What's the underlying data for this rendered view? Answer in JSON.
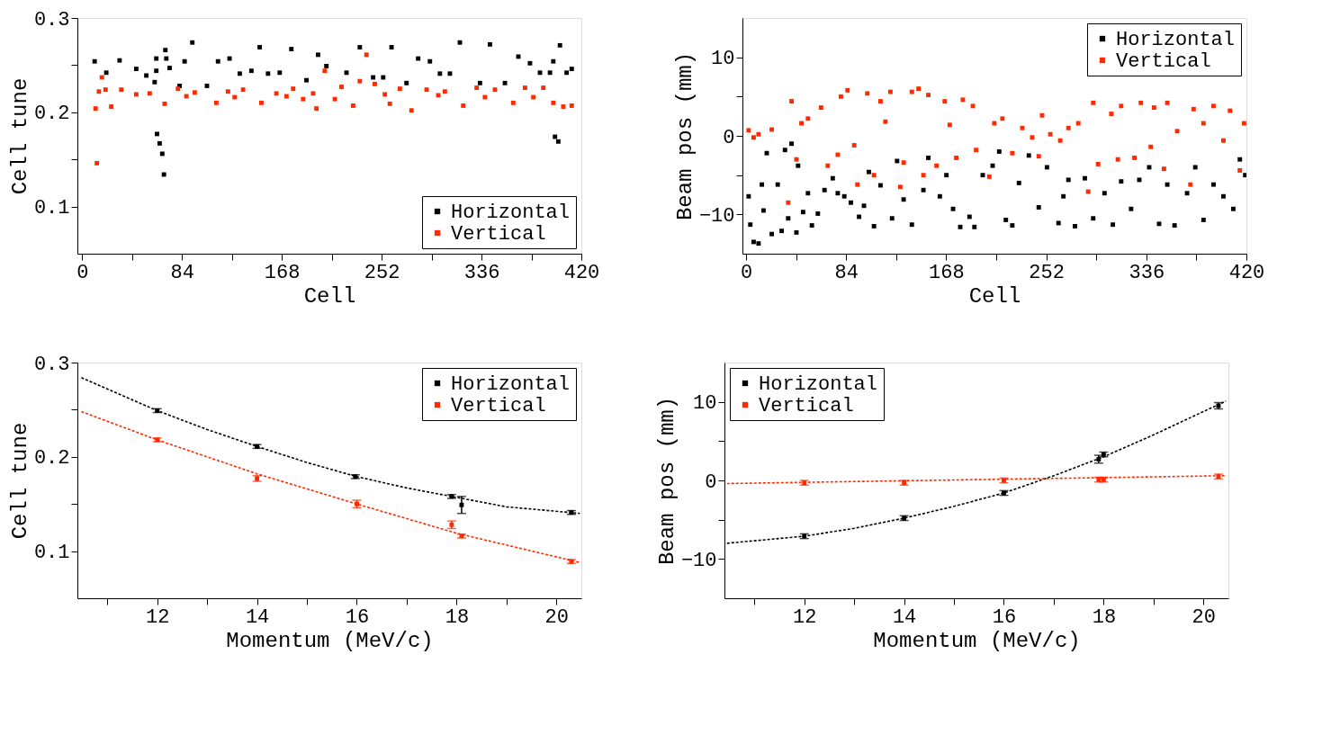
{
  "chart_data": [
    {
      "type": "scatter",
      "xlabel": "Cell",
      "ylabel": "Cell tune",
      "xlim": [
        -4,
        420
      ],
      "ylim": [
        0.05,
        0.3
      ],
      "marker": "square",
      "legend": "bottom right",
      "grid": false,
      "xticks": [
        0,
        {
          "value": 42,
          "label": null
        },
        84,
        {
          "value": 126,
          "label": null
        },
        168,
        {
          "value": 210,
          "label": null
        },
        252,
        {
          "value": 294,
          "label": null
        },
        336,
        {
          "value": 378,
          "label": null
        },
        420
      ],
      "yticks": [
        0.1,
        {
          "value": 0.15,
          "label": null
        },
        0.2,
        {
          "value": 0.25,
          "label": null
        },
        0.3
      ],
      "series": [
        {
          "name": "Horizontal",
          "color": "#000000",
          "x": [
            10.5,
            20.3,
            31.5,
            45.5,
            54,
            61,
            62.4,
            62.4,
            63,
            65.2,
            67.4,
            68.8,
            70,
            70.8,
            73.6,
            82,
            86.2,
            92.7,
            105,
            114.3,
            124,
            132.6,
            142.4,
            149.4,
            156.4,
            166.2,
            176,
            188.7,
            198.5,
            205.5,
            222.4,
            233.6,
            244.8,
            253.3,
            260.3,
            272.9,
            282.7,
            292.6,
            301,
            309.4,
            317.8,
            334.7,
            343.1,
            355.7,
            367,
            376.8,
            385.2,
            393.6,
            396.4,
            397.8,
            400.6,
            402,
            407.6,
            411.9
          ],
          "values": [
            0.254,
            0.242,
            0.255,
            0.246,
            0.239,
            0.232,
            0.244,
            0.257,
            0.177,
            0.167,
            0.156,
            0.134,
            0.266,
            0.257,
            0.247,
            0.228,
            0.254,
            0.274,
            0.228,
            0.254,
            0.257,
            0.241,
            0.244,
            0.269,
            0.241,
            0.242,
            0.267,
            0.234,
            0.261,
            0.249,
            0.242,
            0.269,
            0.237,
            0.237,
            0.269,
            0.231,
            0.257,
            0.254,
            0.241,
            0.241,
            0.274,
            0.231,
            0.272,
            0.231,
            0.259,
            0.252,
            0.242,
            0.242,
            0.254,
            0.174,
            0.169,
            0.271,
            0.242,
            0.246
          ]
        },
        {
          "name": "Vertical",
          "color": "#ff2a00",
          "x": [
            11.3,
            12.4,
            14.1,
            16.6,
            19.7,
            24.5,
            32.9,
            45.5,
            56.8,
            69.4,
            80.6,
            87.7,
            94.7,
            112.9,
            122.7,
            128.3,
            135.4,
            150.8,
            163.4,
            171.9,
            177.5,
            185.9,
            194.3,
            197.1,
            204.1,
            212.6,
            218.2,
            228,
            233.6,
            239.2,
            246.2,
            254.7,
            258.9,
            267.3,
            277.1,
            289.8,
            299.6,
            305.2,
            320.6,
            331.9,
            338.9,
            347.3,
            362.7,
            372.6,
            379.6,
            388,
            396.4,
            404.8,
            411.9
          ],
          "values": [
            0.204,
            0.146,
            0.222,
            0.237,
            0.224,
            0.206,
            0.224,
            0.219,
            0.22,
            0.209,
            0.225,
            0.217,
            0.221,
            0.21,
            0.222,
            0.216,
            0.224,
            0.21,
            0.22,
            0.217,
            0.225,
            0.214,
            0.22,
            0.204,
            0.244,
            0.214,
            0.227,
            0.207,
            0.233,
            0.261,
            0.23,
            0.219,
            0.209,
            0.225,
            0.202,
            0.224,
            0.218,
            0.222,
            0.207,
            0.226,
            0.216,
            0.224,
            0.21,
            0.226,
            0.216,
            0.226,
            0.21,
            0.206,
            0.207
          ]
        }
      ]
    },
    {
      "type": "scatter",
      "xlabel": "Cell",
      "ylabel": "Beam pos (mm)",
      "xlim": [
        -3,
        420
      ],
      "ylim": [
        -15,
        15
      ],
      "marker": "square",
      "legend": "top right",
      "grid": false,
      "xticks": [
        0,
        {
          "value": 42,
          "label": null
        },
        84,
        {
          "value": 126,
          "label": null
        },
        168,
        {
          "value": 210,
          "label": null
        },
        252,
        {
          "value": 294,
          "label": null
        },
        336,
        {
          "value": 378,
          "label": null
        },
        420
      ],
      "yticks": [
        -10,
        {
          "value": -5,
          "label": null
        },
        0,
        {
          "value": 5,
          "label": null
        },
        10
      ],
      "series": [
        {
          "name": "Horizontal",
          "color": "#000000",
          "x": [
            2.2,
            3.6,
            6.4,
            10.5,
            13.3,
            14.7,
            17.4,
            21.6,
            26.6,
            29.9,
            32.7,
            35.4,
            38.2,
            42.3,
            43.7,
            47.9,
            52,
            55.3,
            60.3,
            65.9,
            72.8,
            77,
            82.5,
            88,
            94.9,
            99,
            103.1,
            107.4,
            112.9,
            122.6,
            126.8,
            132.3,
            139.2,
            148.9,
            153,
            162.7,
            168.2,
            173.8,
            179.8,
            187.6,
            191.7,
            198.7,
            207,
            212.5,
            218.1,
            223.5,
            229.1,
            237.4,
            245.7,
            252.6,
            262.3,
            266.4,
            270.6,
            276.1,
            284.4,
            291.4,
            300.9,
            307.9,
            314.9,
            323.2,
            330.1,
            338.4,
            346.7,
            353.6,
            359.7,
            370.2,
            377.1,
            384,
            392.4,
            400.7,
            409,
            414.5,
            419
          ],
          "values": [
            -7.7,
            -11.3,
            -13.5,
            -13.7,
            -6.2,
            -9.5,
            -2.2,
            -12.5,
            -6.2,
            -12.1,
            -1.8,
            -10.5,
            -1.0,
            -12.3,
            -3.8,
            -9.7,
            -7.3,
            -11.4,
            -9.9,
            -6.9,
            -5.4,
            -7.3,
            -7.7,
            -8.5,
            -10.3,
            -8.9,
            -4.6,
            -11.5,
            -6.3,
            -10.5,
            -3.2,
            -8.1,
            -11.3,
            -6.9,
            -2.8,
            -7.7,
            -5.0,
            -9.3,
            -11.6,
            -10.3,
            -11.6,
            -5.0,
            -3.8,
            -2.0,
            -10.7,
            -11.4,
            -6.0,
            -2.5,
            -9.1,
            -4.0,
            -11.1,
            -7.7,
            -5.6,
            -11.5,
            -5.4,
            -10.5,
            -7.3,
            -11.3,
            -5.8,
            -9.3,
            -5.6,
            -4.0,
            -11.2,
            -6.2,
            -11.4,
            -7.3,
            -4.0,
            -10.7,
            -6.2,
            -7.7,
            -9.3,
            -3.0,
            -5.0
          ]
        },
        {
          "name": "Vertical",
          "color": "#ff2a00",
          "x": [
            2.2,
            6.4,
            10.5,
            21.6,
            35.4,
            38.2,
            42.3,
            46.5,
            52,
            63,
            68.6,
            77,
            79.7,
            85.2,
            90.8,
            93.5,
            101.8,
            107.4,
            112.9,
            117,
            121.2,
            129.5,
            132.3,
            139.2,
            144.8,
            148.9,
            153,
            159.9,
            166.8,
            171,
            176.5,
            182,
            190.4,
            193.1,
            204.2,
            208.4,
            215.2,
            223.5,
            231.9,
            240.2,
            245.7,
            248.5,
            255.4,
            263.7,
            270.6,
            278.9,
            287.2,
            291.4,
            295.5,
            306.6,
            312.1,
            314.9,
            326,
            331.4,
            339.7,
            342.5,
            350.8,
            353.6,
            361.9,
            373,
            375.7,
            384,
            392.4,
            400.7,
            406.2,
            414.5,
            418
          ],
          "values": [
            0.7,
            -0.2,
            0.2,
            0.8,
            -8.5,
            4.4,
            -3.0,
            1.6,
            2.2,
            3.6,
            -3.8,
            -2.4,
            5.0,
            5.8,
            -1.2,
            -6.2,
            5.4,
            -5.0,
            4.4,
            1.8,
            5.6,
            -6.5,
            -3.4,
            5.6,
            6.0,
            -5.0,
            5.2,
            -3.8,
            4.4,
            1.4,
            -2.8,
            4.6,
            3.8,
            -1.8,
            -5.2,
            1.6,
            2.2,
            -2.2,
            1.0,
            -0.2,
            -2.6,
            2.6,
            0.2,
            -0.6,
            1.0,
            1.6,
            -7.1,
            4.2,
            -3.6,
            2.8,
            -3.0,
            3.8,
            -2.8,
            4.2,
            -1.4,
            3.6,
            -4.2,
            4.2,
            0.6,
            -6.2,
            3.4,
            1.6,
            3.8,
            -0.6,
            3.2,
            -4.4,
            1.6
          ]
        }
      ]
    },
    {
      "type": "scatter",
      "xlabel": "Momentum (MeV/c)",
      "ylabel": "Cell tune",
      "xlim": [
        10.4,
        20.5
      ],
      "ylim": [
        0.05,
        0.3
      ],
      "marker": "square",
      "legend": "top right",
      "grid": false,
      "xticks": [
        {
          "value": 11,
          "label": null
        },
        12,
        {
          "value": 13,
          "label": null
        },
        14,
        {
          "value": 15,
          "label": null
        },
        16,
        {
          "value": 17,
          "label": null
        },
        18,
        {
          "value": 19,
          "label": null
        },
        20
      ],
      "yticks": [
        0.1,
        {
          "value": 0.15,
          "label": null
        },
        0.2,
        {
          "value": 0.25,
          "label": null
        },
        0.3
      ],
      "series": [
        {
          "type": "line",
          "line_style": "dashed",
          "marker": "none",
          "color": "#000000",
          "x": [
            10.48,
            12,
            13,
            14,
            15,
            16,
            17,
            18,
            19,
            20.47
          ],
          "values": [
            0.284,
            0.249,
            0.229,
            0.211,
            0.194,
            0.179,
            0.167,
            0.157,
            0.147,
            0.14
          ]
        },
        {
          "type": "line",
          "line_style": "dashed",
          "marker": "none",
          "color": "#ff2a00",
          "x": [
            10.48,
            12,
            14,
            16,
            18,
            20.47
          ],
          "values": [
            0.248,
            0.218,
            0.182,
            0.15,
            0.119,
            0.088
          ]
        },
        {
          "name": "Horizontal",
          "color": "#000000",
          "x": [
            12.0,
            14.0,
            15.97,
            17.9,
            18.1,
            20.3
          ],
          "values": [
            0.249,
            0.211,
            0.179,
            0.158,
            0.149,
            0.141
          ],
          "errors": [
            0.002,
            0.002,
            0.002,
            0.002,
            0.009,
            0.002
          ]
        },
        {
          "name": "Vertical",
          "color": "#ff2a00",
          "x": [
            12.0,
            14.0,
            16.0,
            17.9,
            18.1,
            20.3
          ],
          "values": [
            0.218,
            0.177,
            0.15,
            0.128,
            0.116,
            0.089
          ],
          "errors": [
            0.002,
            0.003,
            0.004,
            0.004,
            0.002,
            0.002
          ]
        }
      ]
    },
    {
      "type": "scatter",
      "xlabel": "Momentum (MeV/c)",
      "ylabel": "Beam pos (mm)",
      "xlim": [
        10.4,
        20.5
      ],
      "ylim": [
        -15,
        15
      ],
      "marker": "square",
      "legend": "top left",
      "grid": false,
      "xticks": [
        {
          "value": 11,
          "label": null
        },
        12,
        {
          "value": 13,
          "label": null
        },
        14,
        {
          "value": 15,
          "label": null
        },
        16,
        {
          "value": 17,
          "label": null
        },
        18,
        {
          "value": 19,
          "label": null
        },
        20
      ],
      "yticks": [
        -10,
        {
          "value": -5,
          "label": null
        },
        0,
        {
          "value": 5,
          "label": null
        },
        10
      ],
      "series": [
        {
          "type": "line",
          "line_style": "dashed",
          "marker": "none",
          "color": "#000000",
          "x": [
            10.45,
            12,
            13,
            14,
            15,
            16,
            17,
            18,
            19,
            20.45
          ],
          "values": [
            -8.0,
            -7.1,
            -6.1,
            -4.8,
            -3.3,
            -1.6,
            0.6,
            3.0,
            5.8,
            10.1
          ]
        },
        {
          "type": "line",
          "line_style": "dashed",
          "marker": "none",
          "color": "#ff2a00",
          "x": [
            10.45,
            20.45
          ],
          "values": [
            -0.4,
            0.6
          ]
        },
        {
          "name": "Horizontal",
          "color": "#000000",
          "x": [
            12.0,
            14.0,
            16.0,
            17.9,
            18.0,
            20.3
          ],
          "values": [
            -7.1,
            -4.8,
            -1.6,
            2.7,
            3.3,
            9.5
          ],
          "errors": [
            0.3,
            0.3,
            0.3,
            0.5,
            0.3,
            0.4
          ]
        },
        {
          "name": "Vertical",
          "color": "#ff2a00",
          "x": [
            12.0,
            14.0,
            16.0,
            17.9,
            18.0,
            20.3
          ],
          "values": [
            -0.3,
            -0.3,
            0.0,
            0.1,
            0.1,
            0.5
          ],
          "errors": [
            0.3,
            0.3,
            0.3,
            0.3,
            0.3,
            0.3
          ]
        }
      ]
    }
  ]
}
